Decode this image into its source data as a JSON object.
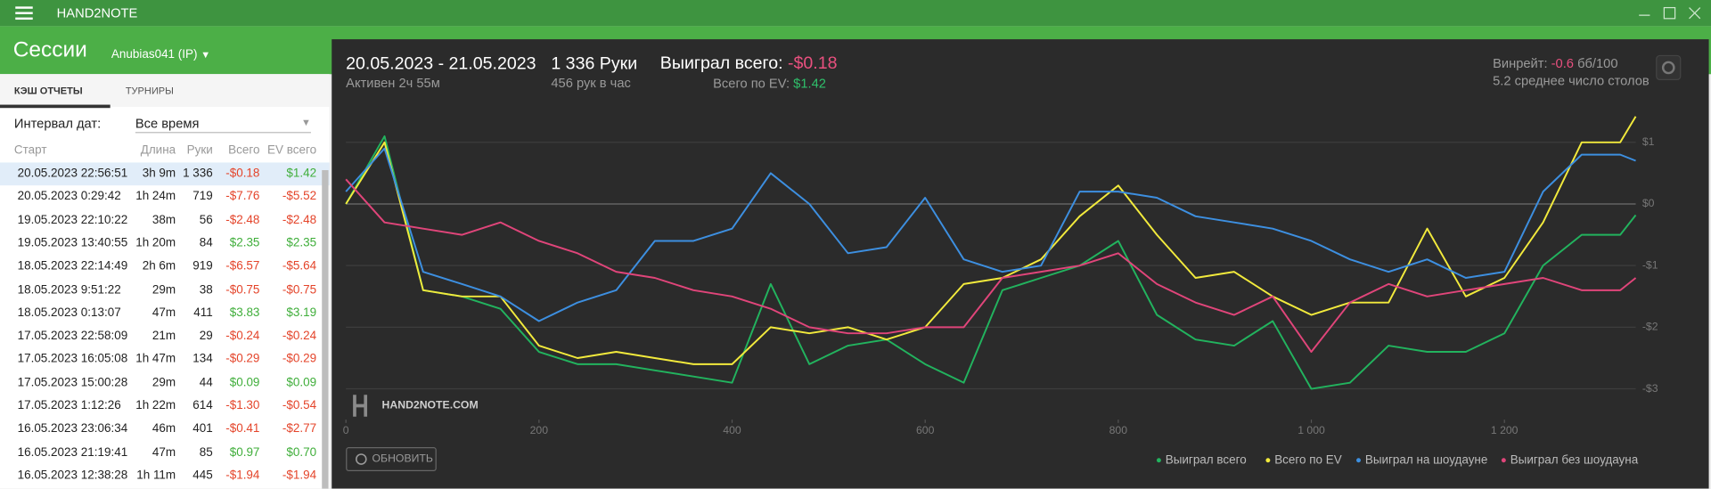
{
  "app": {
    "title": "HAND2NOTE"
  },
  "header": {
    "title": "Сессии",
    "user": "Anubias041 (IP)"
  },
  "tabs": [
    "КЭШ ОТЧЕТЫ",
    "ТУРНИРЫ"
  ],
  "filter": {
    "label": "Интервал дат:",
    "value": "Все время"
  },
  "table": {
    "columns": [
      "Старт",
      "Длина",
      "Руки",
      "Всего",
      "EV всего"
    ],
    "rows": [
      [
        "20.05.2023 22:56:51",
        "3h 9m",
        "1 336",
        "-$0.18",
        "$1.42"
      ],
      [
        "20.05.2023 0:29:42",
        "1h 24m",
        "719",
        "-$7.76",
        "-$5.52"
      ],
      [
        "19.05.2023 22:10:22",
        "38m",
        "56",
        "-$2.48",
        "-$2.48"
      ],
      [
        "19.05.2023 13:40:55",
        "1h 20m",
        "84",
        "$2.35",
        "$2.35"
      ],
      [
        "18.05.2023 22:14:49",
        "2h 6m",
        "919",
        "-$6.57",
        "-$5.64"
      ],
      [
        "18.05.2023 9:51:22",
        "29m",
        "38",
        "-$0.75",
        "-$0.75"
      ],
      [
        "18.05.2023 0:13:07",
        "47m",
        "411",
        "$3.83",
        "$3.19"
      ],
      [
        "17.05.2023 22:58:09",
        "21m",
        "29",
        "-$0.24",
        "-$0.24"
      ],
      [
        "17.05.2023 16:05:08",
        "1h 47m",
        "134",
        "-$0.29",
        "-$0.29"
      ],
      [
        "17.05.2023 15:00:28",
        "29m",
        "44",
        "$0.09",
        "$0.09"
      ],
      [
        "17.05.2023 1:12:26",
        "1h 22m",
        "614",
        "-$1.30",
        "-$0.54"
      ],
      [
        "16.05.2023 23:06:34",
        "46m",
        "401",
        "-$0.41",
        "-$2.77"
      ],
      [
        "16.05.2023 21:19:41",
        "47m",
        "85",
        "$0.97",
        "$0.70"
      ],
      [
        "16.05.2023 12:38:28",
        "1h 11m",
        "445",
        "-$1.94",
        "-$1.94"
      ]
    ]
  },
  "summary": {
    "period": "20.05.2023 - 21.05.2023",
    "active": "Активен 2ч 55м",
    "hands": "1 336 Руки",
    "hands_per_hour": "456 рук в час",
    "won_label": "Выиграл всего:",
    "won_value": "-$0.18",
    "ev_label": "Всего по EV:",
    "ev_value": "$1.42",
    "winrate_label": "Винрейт:",
    "winrate_value": "-0.6",
    "winrate_unit": "бб/100",
    "tables": "5.2 среднее число столов"
  },
  "watermark": "HAND2NOTE.COM",
  "button": "ОБНОВИТЬ",
  "chart_data": {
    "type": "line",
    "x": [
      0,
      40,
      80,
      120,
      160,
      200,
      240,
      280,
      320,
      360,
      400,
      440,
      480,
      520,
      560,
      600,
      640,
      680,
      720,
      760,
      800,
      840,
      880,
      920,
      960,
      1000,
      1040,
      1080,
      1120,
      1160,
      1200,
      1240,
      1280,
      1320,
      1336
    ],
    "xlim": [
      0,
      1336
    ],
    "xticks": [
      0,
      200,
      400,
      600,
      800,
      {
        "value": 1000,
        "label": "1 000"
      },
      {
        "value": 1200,
        "label": "1 200"
      }
    ],
    "ylim": [
      -3.5,
      1.6
    ],
    "yticks": [
      {
        "value": 1,
        "label": "$1"
      },
      {
        "value": 0,
        "label": "$0"
      },
      {
        "value": -1,
        "label": "-$1"
      },
      {
        "value": -2,
        "label": "-$2"
      },
      {
        "value": -3,
        "label": "-$3"
      }
    ],
    "grid": true,
    "legend": "bottom-right",
    "series": [
      {
        "name": "Выиграл всего",
        "color": "#22b35e",
        "values": [
          0,
          1.1,
          -1.4,
          -1.5,
          -1.7,
          -2.4,
          -2.6,
          -2.6,
          -2.7,
          -2.8,
          -2.9,
          -1.3,
          -2.6,
          -2.3,
          -2.2,
          -2.6,
          -2.9,
          -1.4,
          -1.2,
          -1.0,
          -0.6,
          -1.8,
          -2.2,
          -2.3,
          -1.9,
          -3.0,
          -2.9,
          -2.3,
          -2.4,
          -2.4,
          -2.1,
          -1.0,
          -0.5,
          -0.5,
          -0.18
        ]
      },
      {
        "name": "Всего по EV",
        "color": "#f2ea3c",
        "values": [
          0,
          1.0,
          -1.4,
          -1.5,
          -1.5,
          -2.3,
          -2.5,
          -2.4,
          -2.5,
          -2.6,
          -2.6,
          -2.0,
          -2.1,
          -2.0,
          -2.2,
          -2.0,
          -1.3,
          -1.2,
          -0.9,
          -0.2,
          0.3,
          -0.5,
          -1.2,
          -1.1,
          -1.5,
          -1.8,
          -1.6,
          -1.6,
          -0.4,
          -1.5,
          -1.2,
          -0.3,
          1.0,
          1.0,
          1.42
        ]
      },
      {
        "name": "Выиграл на шоудауне",
        "color": "#3d8fe0",
        "values": [
          0.2,
          0.9,
          -1.1,
          -1.3,
          -1.5,
          -1.9,
          -1.6,
          -1.4,
          -0.6,
          -0.6,
          -0.4,
          0.5,
          0.0,
          -0.8,
          -0.7,
          0.1,
          -0.9,
          -1.1,
          -1.0,
          0.2,
          0.2,
          0.1,
          -0.2,
          -0.3,
          -0.4,
          -0.6,
          -0.9,
          -1.1,
          -0.9,
          -1.2,
          -1.1,
          0.2,
          0.8,
          0.8,
          0.7
        ]
      },
      {
        "name": "Выиграл без шоудауна",
        "color": "#e0457a",
        "values": [
          0.4,
          -0.3,
          -0.4,
          -0.5,
          -0.3,
          -0.6,
          -0.8,
          -1.1,
          -1.2,
          -1.4,
          -1.5,
          -1.7,
          -2.0,
          -2.1,
          -2.1,
          -2.0,
          -2.0,
          -1.2,
          -1.1,
          -1.0,
          -0.8,
          -1.3,
          -1.6,
          -1.8,
          -1.5,
          -2.4,
          -1.6,
          -1.3,
          -1.5,
          -1.4,
          -1.3,
          -1.2,
          -1.4,
          -1.4,
          -1.2
        ]
      }
    ]
  }
}
